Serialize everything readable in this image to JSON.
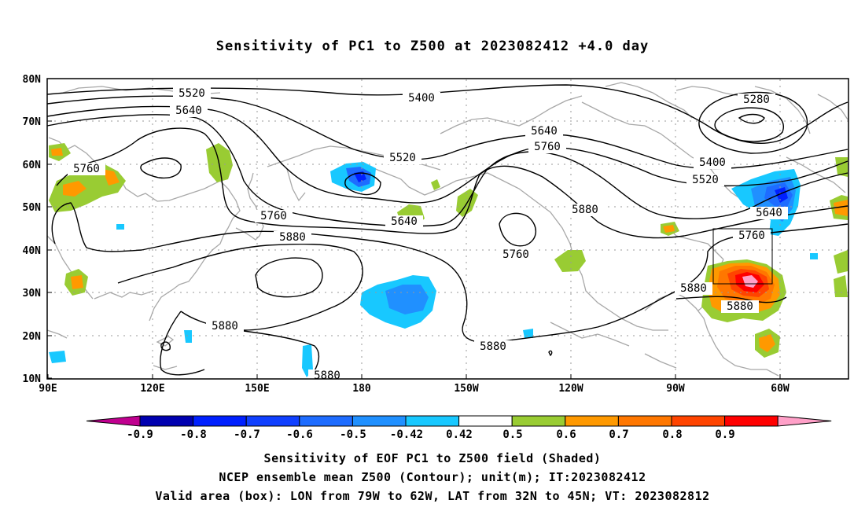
{
  "title": "Sensitivity of PC1 to Z500 at 2023082412 +4.0 day",
  "lat_labels": [
    "80N",
    "70N",
    "60N",
    "50N",
    "40N",
    "30N",
    "20N",
    "10N"
  ],
  "lon_labels": [
    "90E",
    "120E",
    "150E",
    "180",
    "150W",
    "120W",
    "90W",
    "60W"
  ],
  "contour_labels": [
    "5280",
    "5400",
    "5400",
    "5520",
    "5520",
    "5520",
    "5640",
    "5640",
    "5640",
    "5640",
    "5760",
    "5760",
    "5760",
    "5760",
    "5760",
    "5880",
    "5880",
    "5880",
    "5880",
    "5880",
    "5880",
    "5880"
  ],
  "colorbar": {
    "labels": [
      "-0.9",
      "-0.8",
      "-0.7",
      "-0.6",
      "-0.5",
      "-0.42",
      "0.42",
      "0.5",
      "0.6",
      "0.7",
      "0.8",
      "0.9"
    ],
    "colors": [
      "#c0008f",
      "#0000b0",
      "#0020ff",
      "#1040ff",
      "#1e6cff",
      "#2090ff",
      "#18c8ff",
      "#ffffff",
      "#99cc33",
      "#ff9900",
      "#ff7700",
      "#ff4400",
      "#ff0000",
      "#ffa0c8"
    ]
  },
  "valid_box": {
    "lon_min": "79W",
    "lon_max": "62W",
    "lat_min": "32N",
    "lat_max": "45N"
  },
  "footer": {
    "line1": "Sensitivity of EOF PC1 to Z500 field (Shaded)",
    "line2": "NCEP ensemble mean Z500 (Contour); unit(m); IT:2023082412",
    "line3": "Valid area (box): LON from 79W to 62W, LAT from 32N to 45N; VT: 2023082812"
  }
}
